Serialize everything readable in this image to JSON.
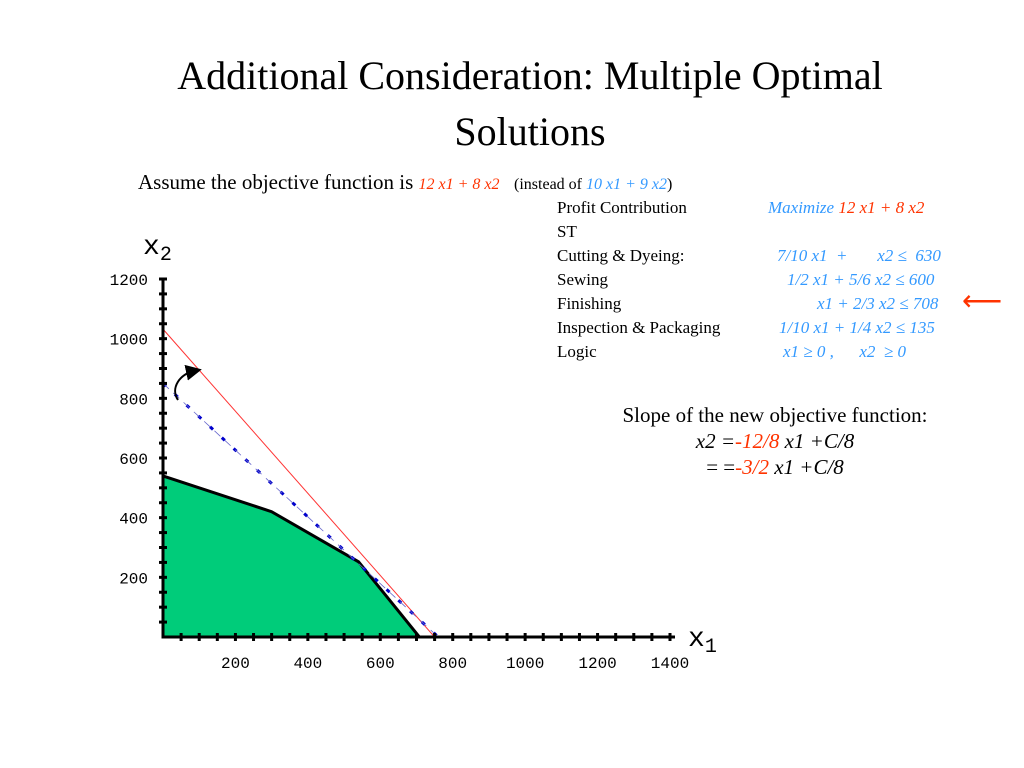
{
  "slide": {
    "title_line1": "Additional Consideration: Multiple Optimal",
    "title_line2": "Solutions"
  },
  "assume": {
    "text": "Assume the objective function is ",
    "new_objective": "12 x1 + 8 x2",
    "instead_prefix": "(instead of ",
    "old_objective": "10 x1 + 9 x2",
    "instead_suffix": ")"
  },
  "model": {
    "rows": [
      {
        "label": "Profit Contribution",
        "prefix": "Maximize",
        "expr": "12 x1 + 8 x2"
      },
      {
        "label": "ST",
        "expr": ""
      },
      {
        "label": "Cutting & Dyeing:",
        "expr": "7/10 x1  +       x2 ≤  630"
      },
      {
        "label": "Sewing",
        "expr": "1/2 x1  + 5/6 x2 ≤ 600"
      },
      {
        "label": "Finishing",
        "expr": "x1  + 2/3 x2 ≤ 708"
      },
      {
        "label": "Inspection & Packaging",
        "expr": "1/10 x1  + 1/4 x2 ≤ 135"
      },
      {
        "label": "Logic",
        "expr": "x1 ≥ 0 ,      x2  ≥ 0"
      }
    ],
    "marker": "⟵"
  },
  "slope": {
    "heading": "Slope of the new objective function:",
    "line1_lhs": "x2 =",
    "line1_coef": "-12/8",
    "line1_rest": " x1 +C/8",
    "line2_lhs": "= =",
    "line2_coef": "-3/2",
    "line2_rest": " x1 +C/8"
  },
  "colors": {
    "feasible_fill": "#00cc7a",
    "new_objective_line": "#ff3333",
    "old_objective_line": "#0000cc",
    "highlight_red": "#ff3300",
    "highlight_blue": "#3399ff"
  },
  "chart_data": {
    "type": "area",
    "xlabel": "x1",
    "ylabel": "x2",
    "xlim": [
      0,
      1400
    ],
    "ylim": [
      0,
      1200
    ],
    "x_ticks": [
      "200",
      "400",
      "600",
      "800",
      "1000",
      "1200",
      "1400"
    ],
    "y_ticks": [
      "200",
      "400",
      "600",
      "800",
      "1000",
      "1200"
    ],
    "x_tick_values": [
      200,
      400,
      600,
      800,
      1000,
      1200,
      1400
    ],
    "y_tick_values": [
      200,
      400,
      600,
      800,
      1000,
      1200
    ],
    "feasible_region": [
      [
        0,
        0
      ],
      [
        0,
        540
      ],
      [
        300,
        420
      ],
      [
        540,
        252
      ],
      [
        708,
        0
      ]
    ],
    "new_objective_line": [
      [
        0,
        1032
      ],
      [
        750,
        0
      ]
    ],
    "old_objective_line": [
      [
        0,
        850
      ],
      [
        760,
        0
      ]
    ]
  }
}
